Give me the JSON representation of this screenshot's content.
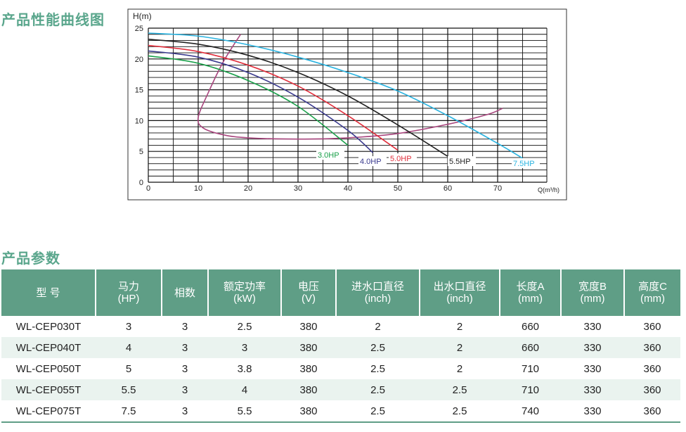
{
  "curve_section_title": "产品性能曲线图",
  "param_section_title": "产品参数",
  "chart_data": {
    "type": "line",
    "ylabel": "H(m)",
    "xlabel": "Q(m³/h)",
    "xlim": [
      0,
      75
    ],
    "ylim": [
      0,
      25
    ],
    "x_ticks": [
      0,
      10,
      20,
      30,
      40,
      50,
      60,
      70
    ],
    "y_ticks": [
      0,
      5,
      10,
      15,
      20,
      25
    ],
    "grid": true,
    "colors": {
      "3.0HP": "#1aa04a",
      "4.0HP": "#3a3a8e",
      "5.0HP": "#e02f3c",
      "5.5HP": "#222222",
      "7.5HP": "#2ab3e0",
      "efficiency": "#a8467e"
    },
    "series": [
      {
        "name": "3.0HP",
        "points": [
          [
            0,
            20.5
          ],
          [
            10,
            19.3
          ],
          [
            20,
            16.5
          ],
          [
            30,
            12.3
          ],
          [
            40,
            6.0
          ]
        ]
      },
      {
        "name": "4.0HP",
        "points": [
          [
            0,
            21.3
          ],
          [
            10,
            20.3
          ],
          [
            20,
            17.8
          ],
          [
            30,
            13.8
          ],
          [
            40,
            8.4
          ],
          [
            45,
            4.8
          ]
        ]
      },
      {
        "name": "5.0HP",
        "points": [
          [
            0,
            22.2
          ],
          [
            10,
            21.2
          ],
          [
            20,
            19.0
          ],
          [
            30,
            15.6
          ],
          [
            40,
            10.8
          ],
          [
            50,
            5.2
          ]
        ]
      },
      {
        "name": "5.5HP",
        "points": [
          [
            0,
            23.2
          ],
          [
            10,
            22.4
          ],
          [
            20,
            20.6
          ],
          [
            30,
            17.8
          ],
          [
            40,
            14.0
          ],
          [
            50,
            9.3
          ],
          [
            60,
            4.2
          ]
        ]
      },
      {
        "name": "7.5HP",
        "points": [
          [
            0,
            24.2
          ],
          [
            10,
            23.7
          ],
          [
            20,
            22.3
          ],
          [
            30,
            20.3
          ],
          [
            40,
            17.8
          ],
          [
            50,
            14.8
          ],
          [
            60,
            10.8
          ],
          [
            70,
            6.3
          ],
          [
            75,
            3.9
          ]
        ]
      }
    ],
    "efficiency_curve": [
      [
        18.5,
        24.0
      ],
      [
        15.0,
        19.5
      ],
      [
        12.0,
        14.5
      ],
      [
        10.0,
        10.5
      ],
      [
        11.0,
        8.8
      ],
      [
        15.0,
        7.7
      ],
      [
        20.0,
        7.2
      ],
      [
        30.0,
        7.0
      ],
      [
        40.0,
        7.2
      ],
      [
        50.0,
        7.9
      ],
      [
        60.0,
        9.4
      ],
      [
        68.0,
        11.0
      ],
      [
        71.0,
        12.0
      ]
    ]
  },
  "table": {
    "headers": [
      {
        "line1": "型 号",
        "line2": ""
      },
      {
        "line1": "马力",
        "line2": "(HP)"
      },
      {
        "line1": "相数",
        "line2": ""
      },
      {
        "line1": "额定功率",
        "line2": "(kW)"
      },
      {
        "line1": "电压",
        "line2": "(V)"
      },
      {
        "line1": "进水口直径",
        "line2": "(inch)"
      },
      {
        "line1": "出水口直径",
        "line2": "(inch)"
      },
      {
        "line1": "长度A",
        "line2": "(mm)"
      },
      {
        "line1": "宽度B",
        "line2": "(mm)"
      },
      {
        "line1": "高度C",
        "line2": "(mm)"
      }
    ],
    "rows": [
      [
        "WL-CEP030T",
        "3",
        "3",
        "2.5",
        "380",
        "2",
        "2",
        "660",
        "330",
        "360"
      ],
      [
        "WL-CEP040T",
        "4",
        "3",
        "3",
        "380",
        "2.5",
        "2",
        "660",
        "330",
        "360"
      ],
      [
        "WL-CEP050T",
        "5",
        "3",
        "3.8",
        "380",
        "2.5",
        "2",
        "710",
        "330",
        "360"
      ],
      [
        "WL-CEP055T",
        "5.5",
        "3",
        "4",
        "380",
        "2.5",
        "2.5",
        "710",
        "330",
        "360"
      ],
      [
        "WL-CEP075T",
        "7.5",
        "3",
        "5.5",
        "380",
        "2.5",
        "2.5",
        "740",
        "330",
        "360"
      ]
    ]
  }
}
